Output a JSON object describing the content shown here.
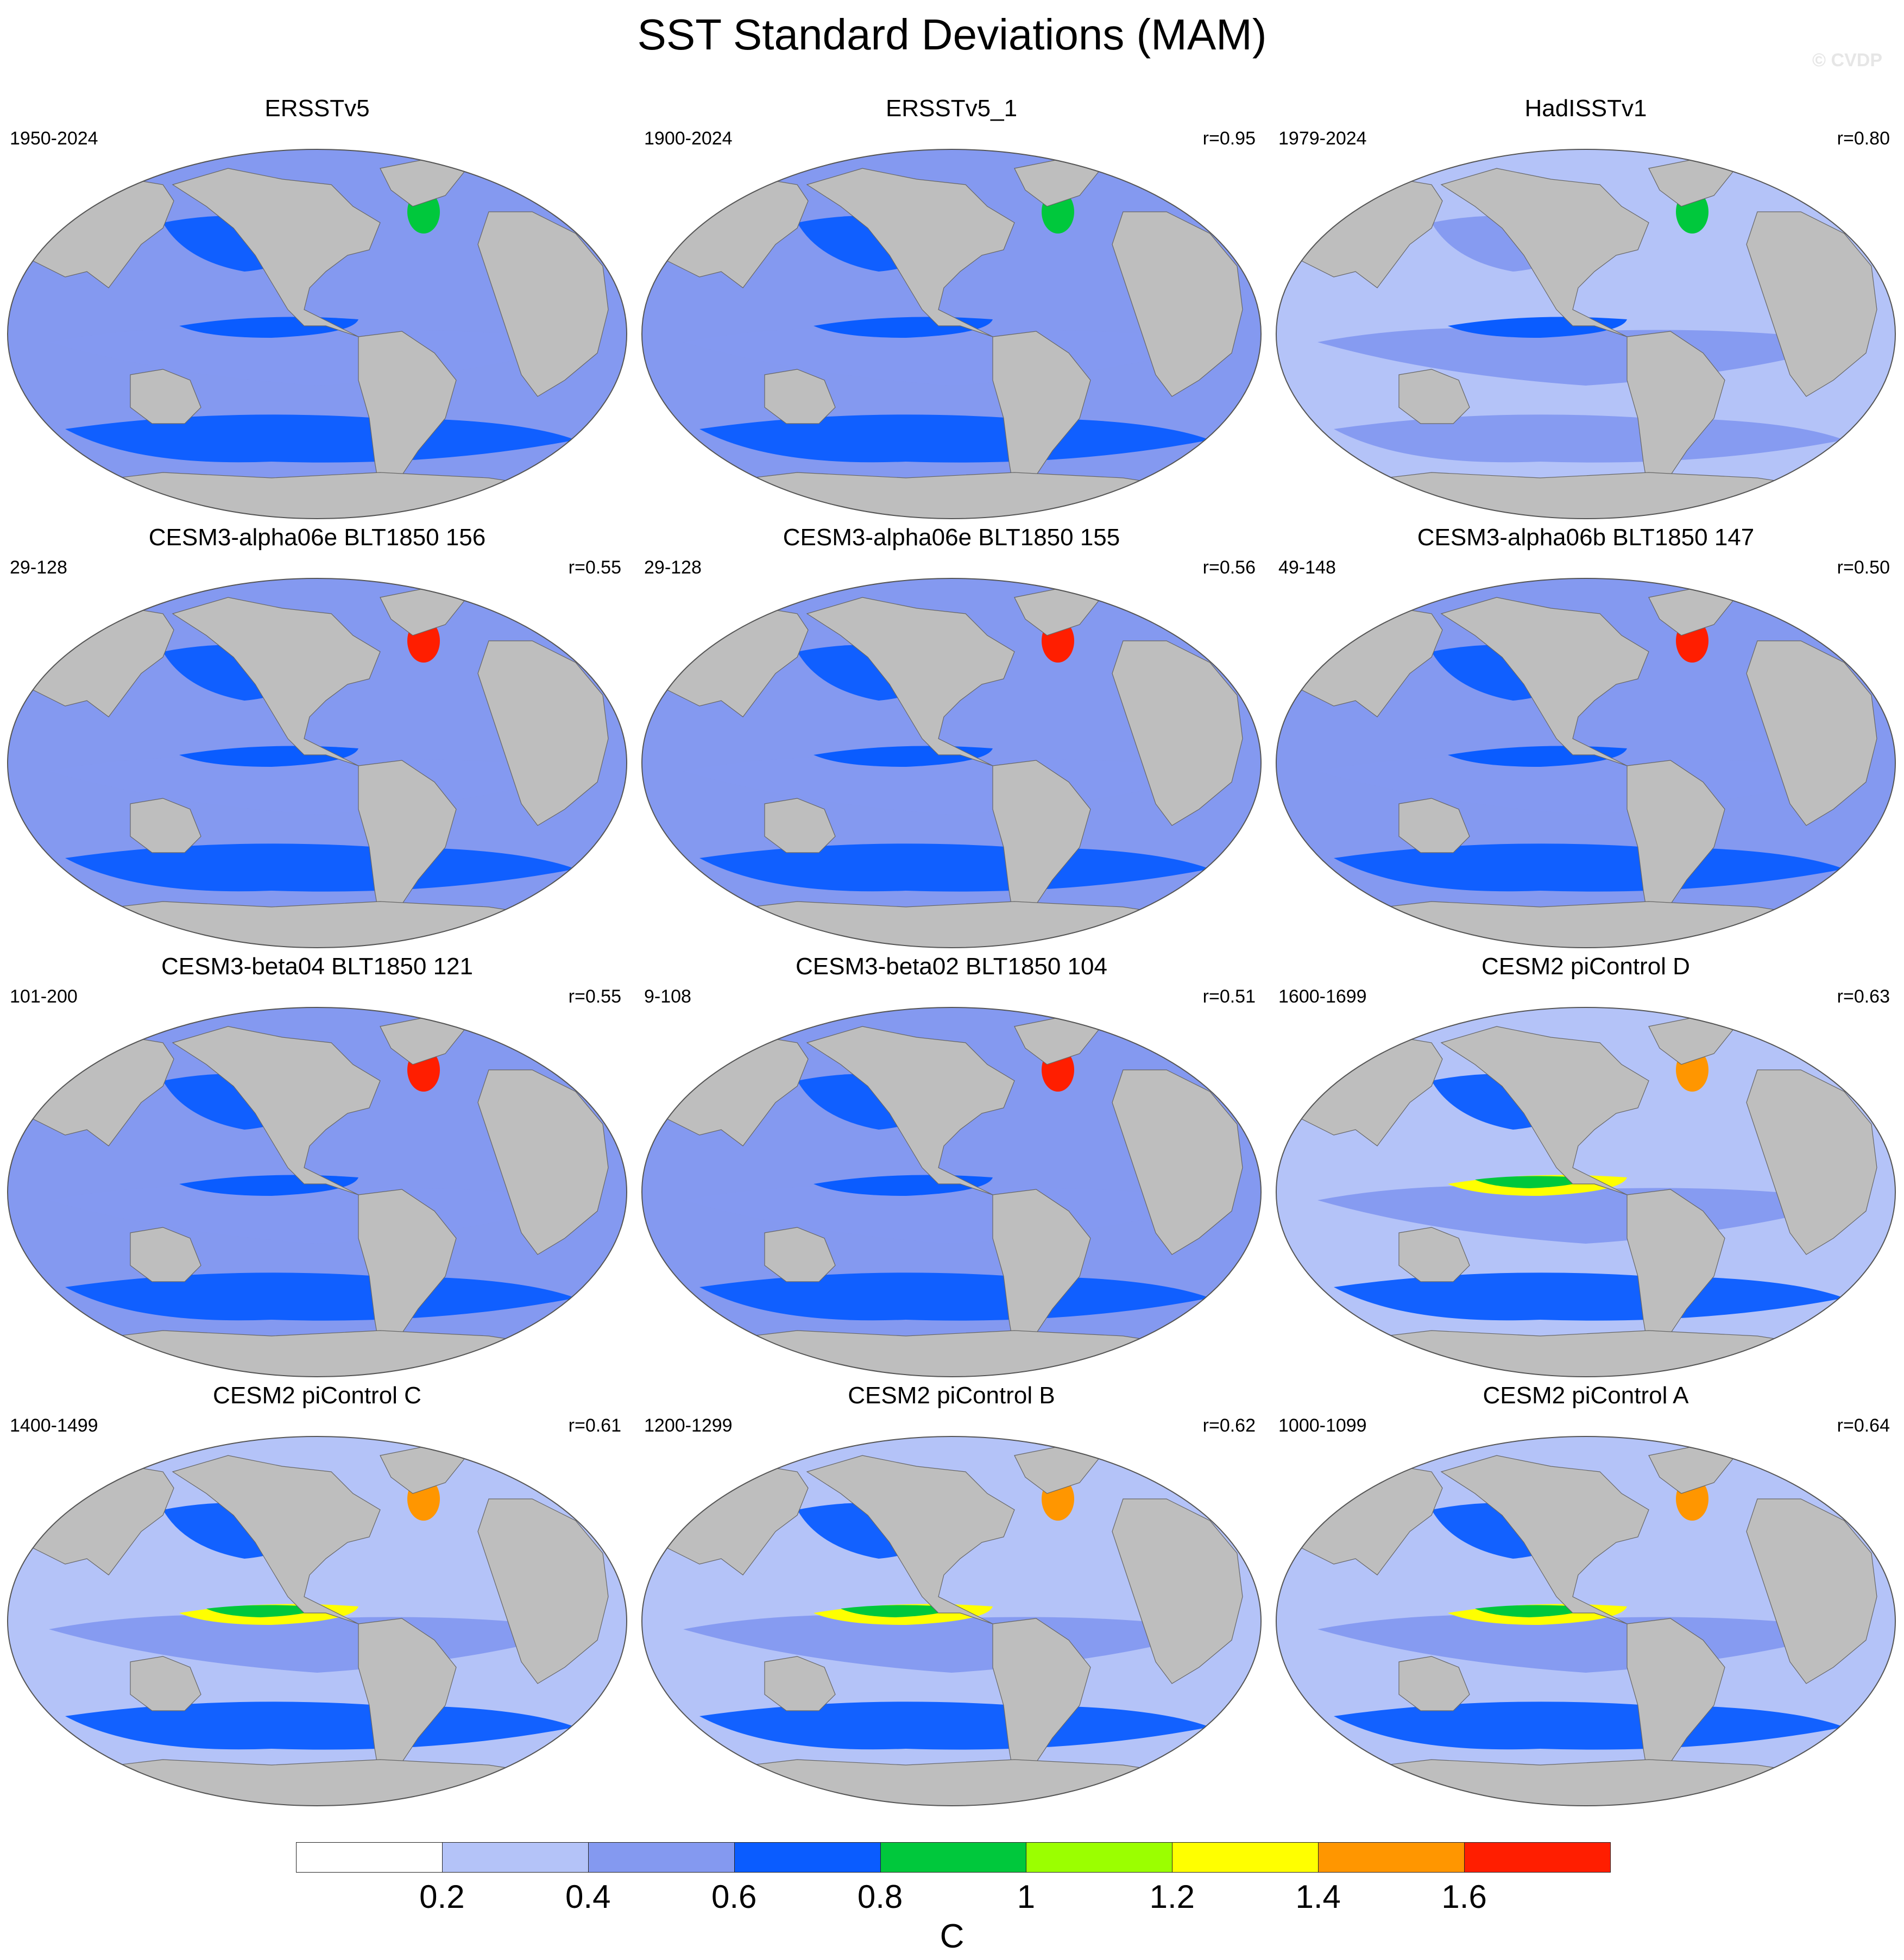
{
  "title": "SST Standard Deviations (MAM)",
  "watermark": "© CVDP",
  "panels": [
    {
      "title": "ERSSTv5",
      "years": "1950-2024",
      "r": ""
    },
    {
      "title": "ERSSTv5_1",
      "years": "1900-2024",
      "r": "r=0.95"
    },
    {
      "title": "HadISSTv1",
      "years": "1979-2024",
      "r": "r=0.80"
    },
    {
      "title": "CESM3-alpha06e BLT1850 156",
      "years": "29-128",
      "r": "r=0.55"
    },
    {
      "title": "CESM3-alpha06e BLT1850 155",
      "years": "29-128",
      "r": "r=0.56"
    },
    {
      "title": "CESM3-alpha06b BLT1850 147",
      "years": "49-148",
      "r": "r=0.50"
    },
    {
      "title": "CESM3-beta04 BLT1850 121",
      "years": "101-200",
      "r": "r=0.55"
    },
    {
      "title": "CESM3-beta02 BLT1850 104",
      "years": "9-108",
      "r": "r=0.51"
    },
    {
      "title": "CESM2 piControl D",
      "years": "1600-1699",
      "r": "r=0.63"
    },
    {
      "title": "CESM2 piControl C",
      "years": "1400-1499",
      "r": "r=0.61"
    },
    {
      "title": "CESM2 piControl B",
      "years": "1200-1299",
      "r": "r=0.62"
    },
    {
      "title": "CESM2 piControl A",
      "years": "1000-1099",
      "r": "r=0.64"
    }
  ],
  "colorbar": {
    "unit": "C",
    "ticks": [
      "0.2",
      "0.4",
      "0.6",
      "0.8",
      "1",
      "1.2",
      "1.4",
      "1.6"
    ],
    "colors": [
      "#ffffff",
      "#b4c3f8",
      "#8499f0",
      "#0a5cff",
      "#00c83c",
      "#9bff00",
      "#ffff00",
      "#ff9600",
      "#ff1e00"
    ]
  },
  "map_colors": {
    "land": "#bebebe",
    "white_ocean": "#ffffff",
    "light_blue": "#b4c3f8",
    "medium_blue": "#8499f0",
    "blue": "#0a5cff",
    "green": "#00c83c",
    "yellow_green": "#9bff00",
    "yellow": "#ffff00",
    "orange": "#ff9600",
    "red": "#ff1e00"
  }
}
